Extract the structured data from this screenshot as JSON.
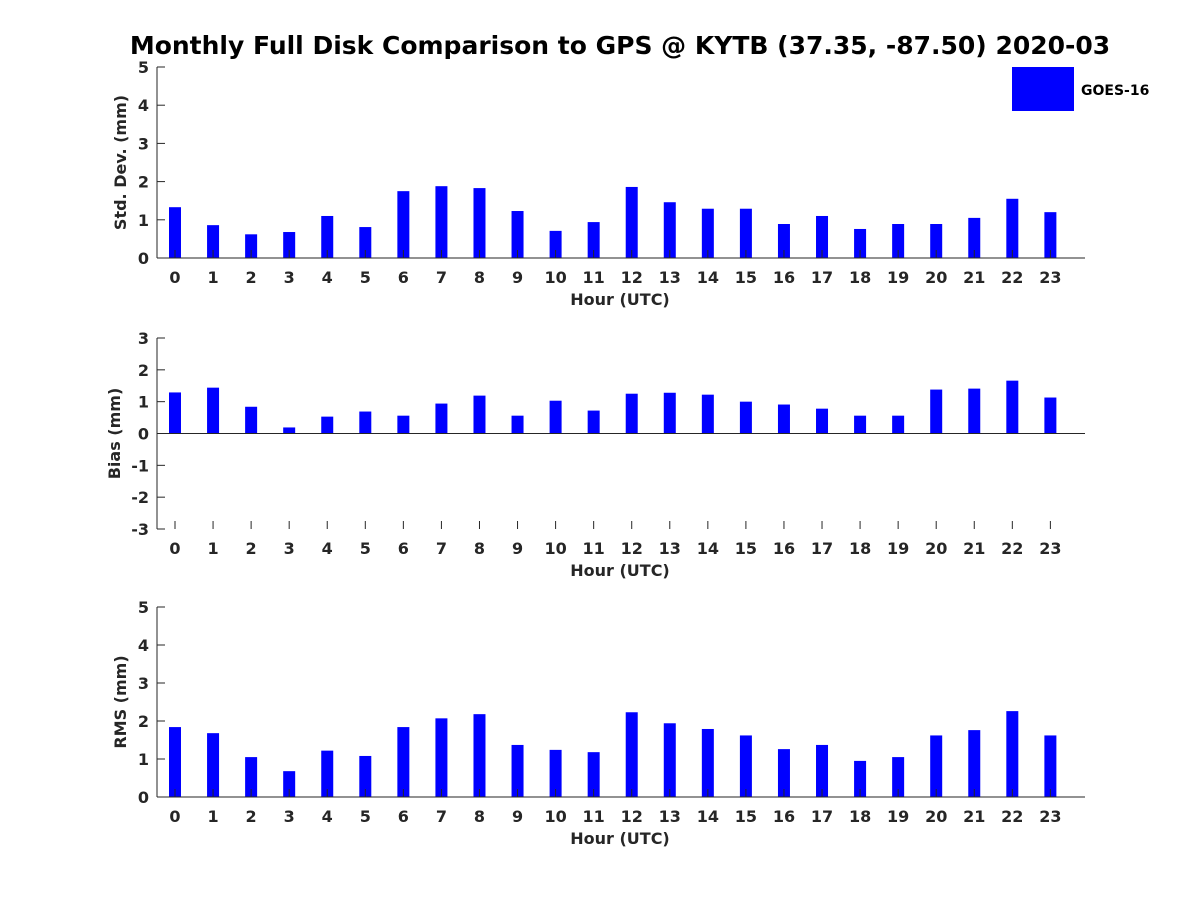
{
  "figure": {
    "title": "Monthly Full Disk Comparison to GPS @ KYTB (37.35, -87.50) 2020-03"
  },
  "legend": {
    "label": "GOES-16",
    "color": "#0000ff"
  },
  "chart_data": [
    {
      "type": "bar",
      "title": "Monthly Full Disk Comparison to GPS @ KYTB (37.35, -87.50) 2020-03",
      "xlabel": "Hour (UTC)",
      "ylabel": "Std. Dev. (mm)",
      "ylim": [
        0,
        5
      ],
      "yticks": [
        0,
        1,
        2,
        3,
        4,
        5
      ],
      "categories": [
        "0",
        "1",
        "2",
        "3",
        "4",
        "5",
        "6",
        "7",
        "8",
        "9",
        "10",
        "11",
        "12",
        "13",
        "14",
        "15",
        "16",
        "17",
        "18",
        "19",
        "20",
        "21",
        "22",
        "23"
      ],
      "series": [
        {
          "name": "GOES-16",
          "values": [
            1.33,
            0.86,
            0.62,
            0.68,
            1.1,
            0.81,
            1.75,
            1.88,
            1.83,
            1.23,
            0.71,
            0.94,
            1.86,
            1.46,
            1.29,
            1.29,
            0.89,
            1.1,
            0.76,
            0.89,
            0.89,
            1.05,
            1.55,
            1.2
          ]
        }
      ]
    },
    {
      "type": "bar",
      "xlabel": "Hour (UTC)",
      "ylabel": "Bias (mm)",
      "ylim": [
        -3,
        3
      ],
      "yticks": [
        -3,
        -2,
        -1,
        0,
        1,
        2,
        3
      ],
      "categories": [
        "0",
        "1",
        "2",
        "3",
        "4",
        "5",
        "6",
        "7",
        "8",
        "9",
        "10",
        "11",
        "12",
        "13",
        "14",
        "15",
        "16",
        "17",
        "18",
        "19",
        "20",
        "21",
        "22",
        "23"
      ],
      "series": [
        {
          "name": "GOES-16",
          "values": [
            1.29,
            1.44,
            0.84,
            0.19,
            0.53,
            0.69,
            0.56,
            0.94,
            1.19,
            0.56,
            1.03,
            0.72,
            1.25,
            1.28,
            1.22,
            1.0,
            0.91,
            0.78,
            0.56,
            0.56,
            1.38,
            1.41,
            1.66,
            1.13
          ]
        }
      ]
    },
    {
      "type": "bar",
      "xlabel": "Hour (UTC)",
      "ylabel": "RMS (mm)",
      "ylim": [
        0,
        5
      ],
      "yticks": [
        0,
        1,
        2,
        3,
        4,
        5
      ],
      "categories": [
        "0",
        "1",
        "2",
        "3",
        "4",
        "5",
        "6",
        "7",
        "8",
        "9",
        "10",
        "11",
        "12",
        "13",
        "14",
        "15",
        "16",
        "17",
        "18",
        "19",
        "20",
        "21",
        "22",
        "23"
      ],
      "series": [
        {
          "name": "GOES-16",
          "values": [
            1.84,
            1.68,
            1.05,
            0.68,
            1.22,
            1.08,
            1.84,
            2.07,
            2.18,
            1.37,
            1.24,
            1.18,
            2.23,
            1.94,
            1.79,
            1.62,
            1.26,
            1.37,
            0.95,
            1.05,
            1.62,
            1.76,
            2.26,
            1.62
          ]
        }
      ]
    }
  ]
}
